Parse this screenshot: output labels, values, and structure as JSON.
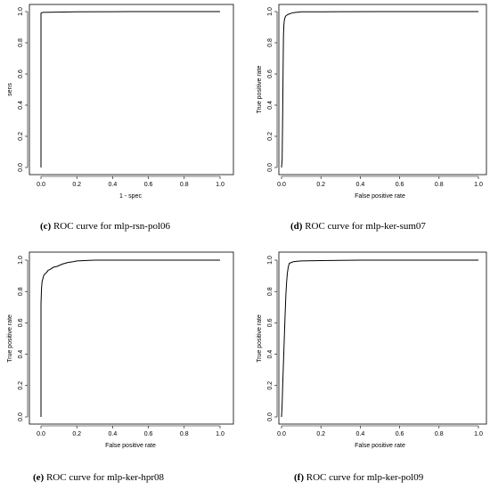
{
  "chart_data": [
    {
      "type": "line",
      "panel_label": "(c)",
      "caption": "ROC curve for mlp-rsn-pol06",
      "xlabel": "1 - spec",
      "ylabel": "sens",
      "xlim": [
        0,
        1
      ],
      "ylim": [
        0,
        1
      ],
      "xticks": [
        "0.0",
        "0.2",
        "0.4",
        "0.6",
        "0.8",
        "1.0"
      ],
      "yticks": [
        "0.0",
        "0.2",
        "0.4",
        "0.6",
        "0.8",
        "1.0"
      ],
      "grid": false,
      "x": [
        0.0,
        0.0,
        0.0,
        0.01,
        0.02,
        0.05,
        0.2,
        0.5,
        1.0
      ],
      "y": [
        0.0,
        0.9,
        0.99,
        0.995,
        0.995,
        0.996,
        0.998,
        1.0,
        1.0
      ]
    },
    {
      "type": "line",
      "panel_label": "(d)",
      "caption": "ROC curve for mlp-ker-sum07",
      "xlabel": "False positive rate",
      "ylabel": "True positive rate",
      "xlim": [
        0,
        1
      ],
      "ylim": [
        0,
        1
      ],
      "xticks": [
        "0.0",
        "0.2",
        "0.4",
        "0.6",
        "0.8",
        "1.0"
      ],
      "yticks": [
        "0.0",
        "0.2",
        "0.4",
        "0.6",
        "0.8",
        "1.0"
      ],
      "grid": false,
      "x": [
        0.0,
        0.003,
        0.006,
        0.008,
        0.01,
        0.012,
        0.015,
        0.02,
        0.03,
        0.04,
        0.05,
        0.06,
        0.08,
        0.1,
        0.2,
        0.5,
        1.0
      ],
      "y": [
        0.0,
        0.05,
        0.35,
        0.65,
        0.85,
        0.92,
        0.95,
        0.97,
        0.98,
        0.985,
        0.99,
        0.993,
        0.996,
        0.998,
        0.999,
        1.0,
        1.0
      ]
    },
    {
      "type": "line",
      "panel_label": "(e)",
      "caption": "ROC curve for mlp-ker-hpr08",
      "xlabel": "False positive rate",
      "ylabel": "True positive rate",
      "xlim": [
        0,
        1
      ],
      "ylim": [
        0,
        1
      ],
      "xticks": [
        "0.0",
        "0.2",
        "0.4",
        "0.6",
        "0.8",
        "1.0"
      ],
      "yticks": [
        "0.0",
        "0.2",
        "0.4",
        "0.6",
        "0.8",
        "1.0"
      ],
      "grid": false,
      "x": [
        0.0,
        0.0,
        0.003,
        0.006,
        0.01,
        0.015,
        0.02,
        0.03,
        0.04,
        0.05,
        0.07,
        0.09,
        0.12,
        0.15,
        0.18,
        0.2,
        0.3,
        0.5,
        1.0
      ],
      "y": [
        0.0,
        0.72,
        0.82,
        0.86,
        0.88,
        0.9,
        0.91,
        0.92,
        0.935,
        0.94,
        0.955,
        0.96,
        0.975,
        0.985,
        0.99,
        0.995,
        1.0,
        1.0,
        1.0
      ]
    },
    {
      "type": "line",
      "panel_label": "(f)",
      "caption": "ROC curve for mlp-ker-pol09",
      "xlabel": "False positive rate",
      "ylabel": "True positive rate",
      "xlim": [
        0,
        1
      ],
      "ylim": [
        0,
        1
      ],
      "xticks": [
        "0.0",
        "0.2",
        "0.4",
        "0.6",
        "0.8",
        "1.0"
      ],
      "yticks": [
        "0.0",
        "0.2",
        "0.4",
        "0.6",
        "0.8",
        "1.0"
      ],
      "grid": false,
      "x": [
        0.0,
        0.003,
        0.006,
        0.01,
        0.014,
        0.018,
        0.022,
        0.026,
        0.03,
        0.035,
        0.04,
        0.05,
        0.06,
        0.08,
        0.1,
        0.2,
        0.4,
        1.0
      ],
      "y": [
        0.0,
        0.08,
        0.2,
        0.35,
        0.5,
        0.65,
        0.78,
        0.86,
        0.92,
        0.96,
        0.98,
        0.985,
        0.99,
        0.993,
        0.995,
        0.997,
        1.0,
        1.0
      ]
    }
  ]
}
